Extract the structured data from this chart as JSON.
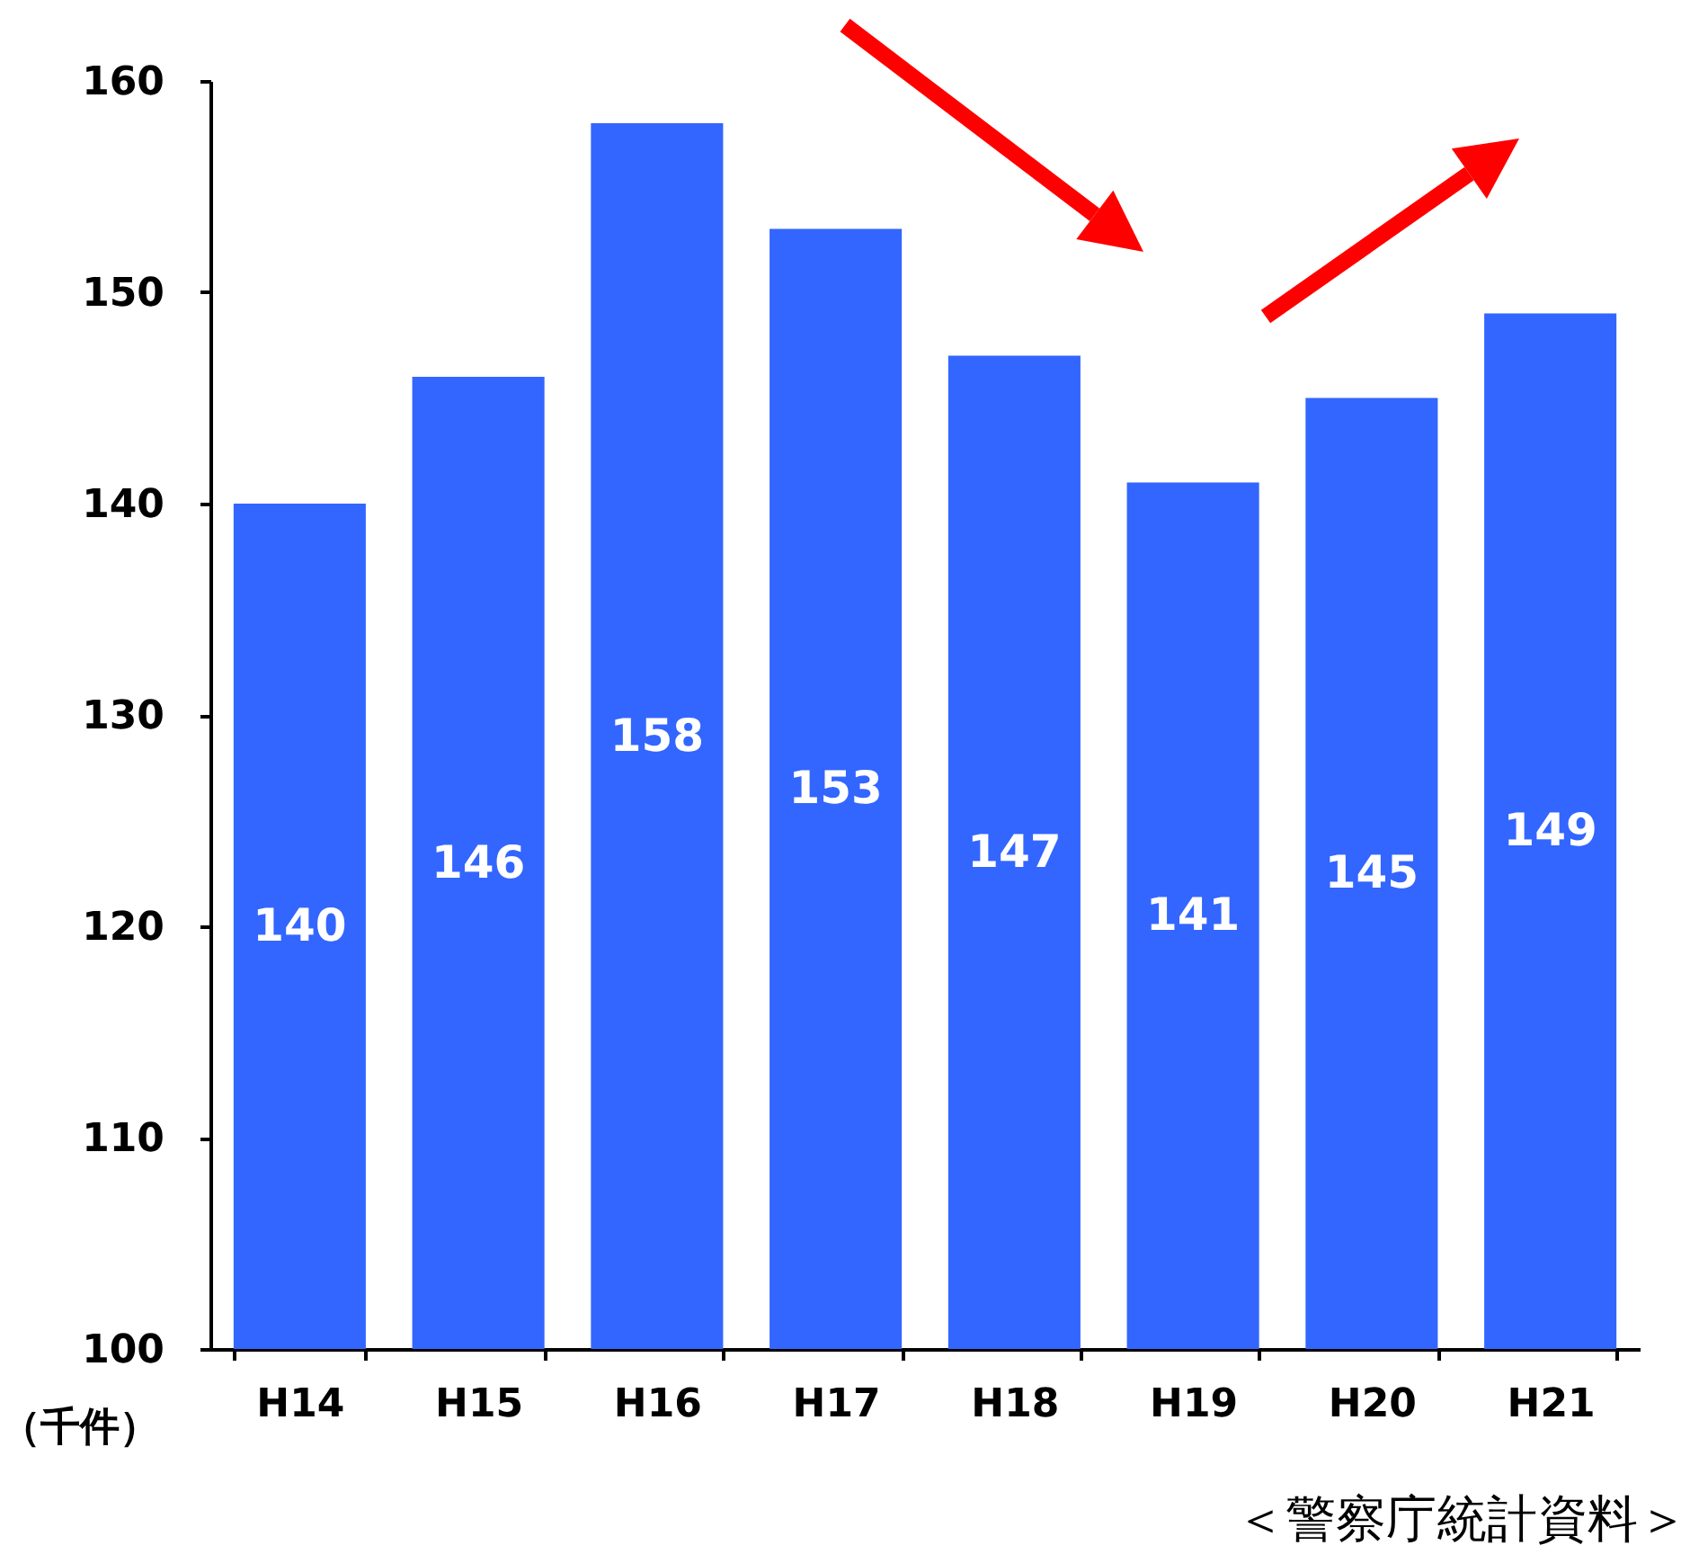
{
  "chart_data": {
    "type": "bar",
    "ylabel": "（千件）",
    "categories": [
      "H14",
      "H15",
      "H16",
      "H17",
      "H18",
      "H19",
      "H20",
      "H21"
    ],
    "values": [
      140,
      146,
      158,
      153,
      147,
      141,
      145,
      149
    ],
    "color": "#3366ff",
    "ylim": [
      100,
      160
    ],
    "yticks": [
      100,
      110,
      120,
      130,
      140,
      150,
      160
    ],
    "grid": false,
    "data_labels": true,
    "annotations": [
      "＜警察庁統計資料＞"
    ]
  }
}
